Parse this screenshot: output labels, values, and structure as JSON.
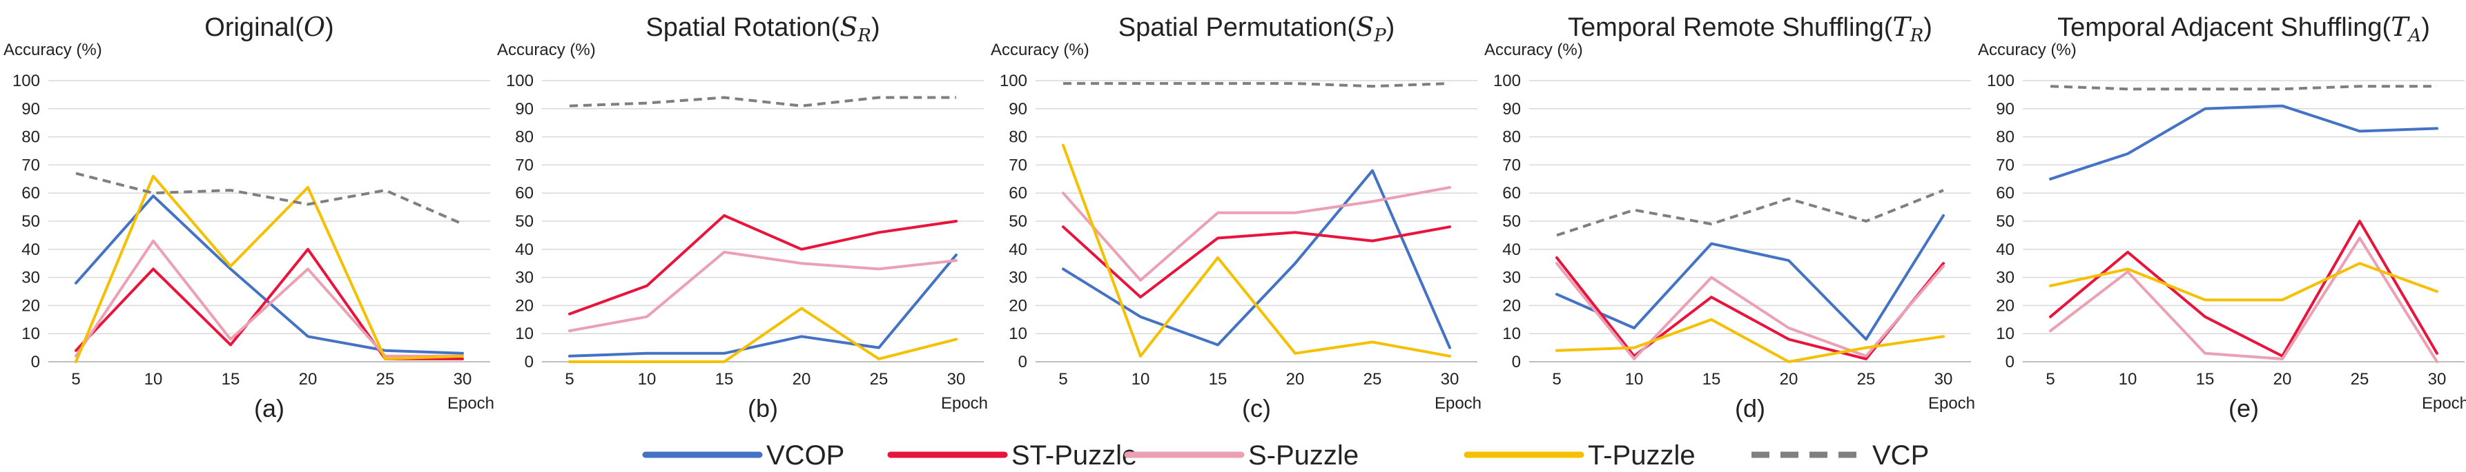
{
  "figure": {
    "legend": [
      {
        "name": "VCOP",
        "color": "#4472c4",
        "dashed": false
      },
      {
        "name": "ST-Puzzle",
        "color": "#e8143c",
        "dashed": false
      },
      {
        "name": "S-Puzzle",
        "color": "#eba0b4",
        "dashed": false
      },
      {
        "name": "T-Puzzle",
        "color": "#f5c000",
        "dashed": false
      },
      {
        "name": "VCP",
        "color": "#7f7f7f",
        "dashed": true
      }
    ]
  },
  "chart_data": [
    {
      "type": "line",
      "title": "Original",
      "title_symbol": "O",
      "title_sub": "",
      "ylabel": "Accuracy (%)",
      "xlabel": "Epoch",
      "panel_label": "(a)",
      "x": [
        5,
        10,
        15,
        20,
        25,
        30
      ],
      "ylim": [
        0,
        100
      ],
      "yticks": [
        0,
        10,
        20,
        30,
        40,
        50,
        60,
        70,
        80,
        90,
        100
      ],
      "series": [
        {
          "name": "VCOP",
          "values": [
            28,
            59,
            33,
            9,
            4,
            3
          ]
        },
        {
          "name": "ST-Puzzle",
          "values": [
            4,
            33,
            6,
            40,
            1,
            1
          ]
        },
        {
          "name": "S-Puzzle",
          "values": [
            2,
            43,
            8,
            33,
            2,
            2
          ]
        },
        {
          "name": "T-Puzzle",
          "values": [
            0,
            66,
            34,
            62,
            1,
            2
          ]
        },
        {
          "name": "VCP",
          "values": [
            67,
            60,
            61,
            56,
            61,
            49
          ]
        }
      ]
    },
    {
      "type": "line",
      "title": "Spatial Rotation",
      "title_symbol": "S",
      "title_sub": "R",
      "ylabel": "Accuracy (%)",
      "xlabel": "Epoch",
      "panel_label": "(b)",
      "x": [
        5,
        10,
        15,
        20,
        25,
        30
      ],
      "ylim": [
        0,
        100
      ],
      "yticks": [
        0,
        10,
        20,
        30,
        40,
        50,
        60,
        70,
        80,
        90,
        100
      ],
      "series": [
        {
          "name": "VCOP",
          "values": [
            2,
            3,
            3,
            9,
            5,
            38
          ]
        },
        {
          "name": "ST-Puzzle",
          "values": [
            17,
            27,
            52,
            40,
            46,
            50
          ]
        },
        {
          "name": "S-Puzzle",
          "values": [
            11,
            16,
            39,
            35,
            33,
            36
          ]
        },
        {
          "name": "T-Puzzle",
          "values": [
            0,
            0,
            0,
            19,
            1,
            8
          ]
        },
        {
          "name": "VCP",
          "values": [
            91,
            92,
            94,
            91,
            94,
            94
          ]
        }
      ]
    },
    {
      "type": "line",
      "title": "Spatial Permutation",
      "title_symbol": "S",
      "title_sub": "P",
      "ylabel": "Accuracy (%)",
      "xlabel": "Epoch",
      "panel_label": "(c)",
      "x": [
        5,
        10,
        15,
        20,
        25,
        30
      ],
      "ylim": [
        0,
        100
      ],
      "yticks": [
        0,
        10,
        20,
        30,
        40,
        50,
        60,
        70,
        80,
        90,
        100
      ],
      "series": [
        {
          "name": "VCOP",
          "values": [
            33,
            16,
            6,
            35,
            68,
            5
          ]
        },
        {
          "name": "ST-Puzzle",
          "values": [
            48,
            23,
            44,
            46,
            43,
            48
          ]
        },
        {
          "name": "S-Puzzle",
          "values": [
            60,
            29,
            53,
            53,
            57,
            62
          ]
        },
        {
          "name": "T-Puzzle",
          "values": [
            77,
            2,
            37,
            3,
            7,
            2
          ]
        },
        {
          "name": "VCP",
          "values": [
            99,
            99,
            99,
            99,
            98,
            99
          ]
        }
      ]
    },
    {
      "type": "line",
      "title": "Temporal Remote Shuffling",
      "title_symbol": "T",
      "title_sub": "R",
      "ylabel": "Accuracy (%)",
      "xlabel": "Epoch",
      "panel_label": "(d)",
      "x": [
        5,
        10,
        15,
        20,
        25,
        30
      ],
      "ylim": [
        0,
        100
      ],
      "yticks": [
        0,
        10,
        20,
        30,
        40,
        50,
        60,
        70,
        80,
        90,
        100
      ],
      "series": [
        {
          "name": "VCOP",
          "values": [
            24,
            12,
            42,
            36,
            8,
            52
          ]
        },
        {
          "name": "ST-Puzzle",
          "values": [
            37,
            2,
            23,
            8,
            1,
            35
          ]
        },
        {
          "name": "S-Puzzle",
          "values": [
            35,
            1,
            30,
            12,
            2,
            34
          ]
        },
        {
          "name": "T-Puzzle",
          "values": [
            4,
            5,
            15,
            0,
            5,
            9
          ]
        },
        {
          "name": "VCP",
          "values": [
            45,
            54,
            49,
            58,
            50,
            61
          ]
        }
      ]
    },
    {
      "type": "line",
      "title": "Temporal Adjacent Shuffling",
      "title_symbol": "T",
      "title_sub": "A",
      "ylabel": "Accuracy (%)",
      "xlabel": "Epoch",
      "panel_label": "(e)",
      "x": [
        5,
        10,
        15,
        20,
        25,
        30
      ],
      "ylim": [
        0,
        100
      ],
      "yticks": [
        0,
        10,
        20,
        30,
        40,
        50,
        60,
        70,
        80,
        90,
        100
      ],
      "series": [
        {
          "name": "VCOP",
          "values": [
            65,
            74,
            90,
            91,
            82,
            83
          ]
        },
        {
          "name": "ST-Puzzle",
          "values": [
            16,
            39,
            16,
            2,
            50,
            3
          ]
        },
        {
          "name": "S-Puzzle",
          "values": [
            11,
            32,
            3,
            1,
            44,
            0
          ]
        },
        {
          "name": "T-Puzzle",
          "values": [
            27,
            33,
            22,
            22,
            35,
            25
          ]
        },
        {
          "name": "VCP",
          "values": [
            98,
            97,
            97,
            97,
            98,
            98
          ]
        }
      ]
    }
  ]
}
